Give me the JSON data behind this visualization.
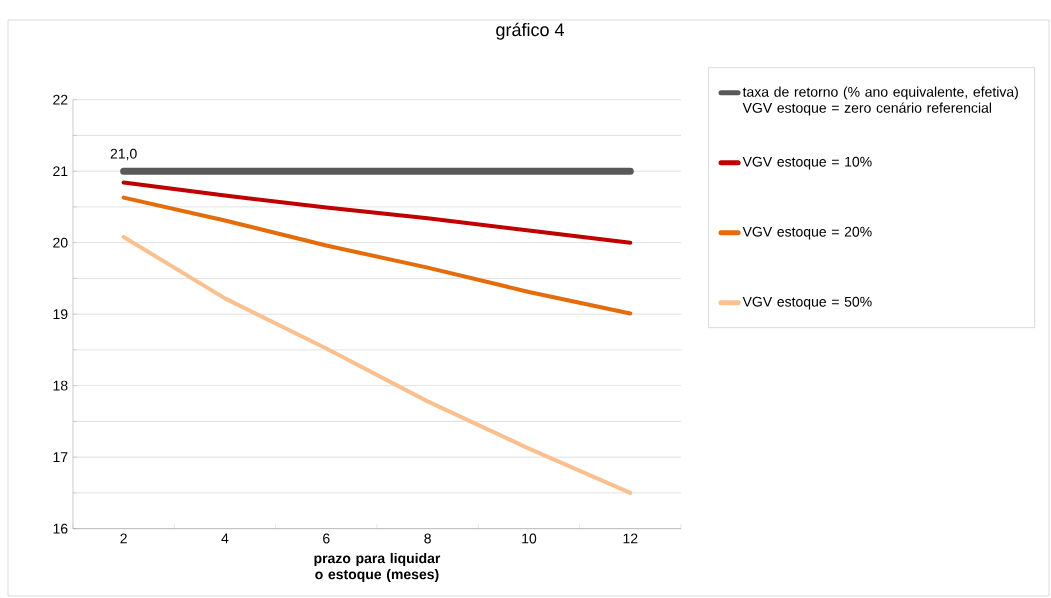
{
  "chart_data": {
    "type": "line",
    "title": "gráfico 4",
    "xlabel": "prazo para liquidar o estoque (meses)",
    "categories": [
      "2",
      "4",
      "6",
      "8",
      "10",
      "12"
    ],
    "series": [
      {
        "name": "taxa de retorno (% ano equivalente, efetiva) VGV estoque = zero cenário referencial",
        "color": "#595959",
        "values": [
          21,
          21,
          21,
          21,
          21,
          21
        ]
      },
      {
        "name": "VGV estoque = 10%",
        "color": "#c00000",
        "values": [
          20.84,
          20.66,
          20.49,
          20.34,
          20.17,
          20.0
        ]
      },
      {
        "name": "VGV estoque = 20%",
        "color": "#e46c0a",
        "values": [
          20.63,
          20.31,
          19.96,
          19.65,
          19.31,
          19.01
        ]
      },
      {
        "name": "VGV estoque = 50%",
        "color": "#fac090",
        "values": [
          20.08,
          19.22,
          18.52,
          17.78,
          17.12,
          16.5
        ]
      }
    ],
    "ylim": [
      16,
      22
    ],
    "yticks": [
      16,
      {
        "value": 16.5,
        "label": null
      },
      17,
      {
        "value": 17.5,
        "label": null
      },
      18,
      {
        "value": 18.5,
        "label": null
      },
      19,
      {
        "value": 19.5,
        "label": null
      },
      20,
      {
        "value": 20.5,
        "label": null
      },
      21,
      {
        "value": 21.5,
        "label": null
      },
      22
    ],
    "grid": "y",
    "legend": "right",
    "marker": "none",
    "line_style": "solid",
    "annotations": [
      {
        "text": "21,0",
        "x": "2",
        "y": 21
      }
    ]
  }
}
